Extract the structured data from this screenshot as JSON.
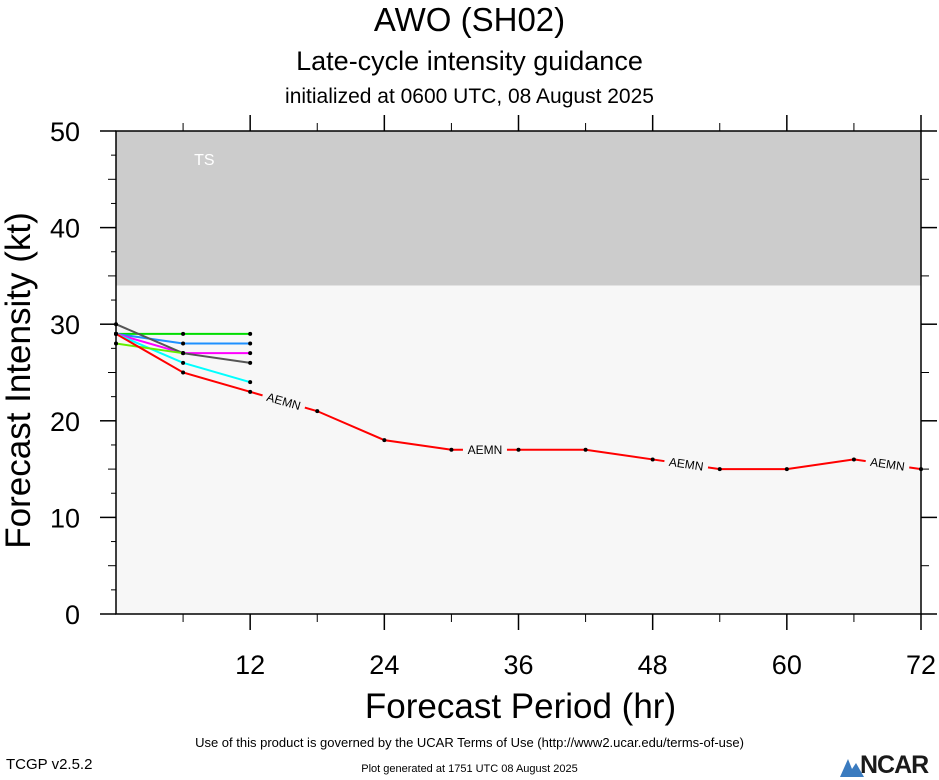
{
  "chart_data": {
    "type": "line",
    "title": "AWO (SH02)",
    "subtitle": "Late-cycle intensity guidance",
    "init_line": "initialized at 0600 UTC, 08 August 2025",
    "xlabel": "Forecast Period (hr)",
    "ylabel": "Forecast Intensity (kt)",
    "xlim": [
      0,
      72
    ],
    "ylim": [
      0,
      50
    ],
    "xticks": [
      12,
      24,
      36,
      48,
      60,
      72
    ],
    "yticks": [
      0,
      10,
      20,
      30,
      40,
      50
    ],
    "bands": [
      {
        "label": "TS",
        "ymin": 34,
        "ymax": 50,
        "color": "#cccccc"
      },
      {
        "label": "",
        "ymin": 0,
        "ymax": 34,
        "color": "#f7f7f7"
      }
    ],
    "series": [
      {
        "name": "AEMN",
        "color": "#ff0000",
        "labeled": true,
        "x": [
          0,
          6,
          12,
          18,
          24,
          30,
          36,
          42,
          48,
          54,
          60,
          66,
          72
        ],
        "y": [
          29,
          25,
          23,
          21,
          18,
          17,
          17,
          17,
          16,
          15,
          15,
          16,
          15
        ]
      },
      {
        "name": "",
        "color": "#00dd00",
        "x": [
          0,
          6,
          12
        ],
        "y": [
          29,
          29,
          29
        ]
      },
      {
        "name": "",
        "color": "#1e90ff",
        "x": [
          0,
          6,
          12
        ],
        "y": [
          29,
          28,
          28
        ]
      },
      {
        "name": "",
        "color": "#ff00ff",
        "x": [
          0,
          6,
          12
        ],
        "y": [
          29,
          27,
          27
        ]
      },
      {
        "name": "",
        "color": "#555555",
        "x": [
          0,
          6,
          12
        ],
        "y": [
          30,
          27,
          26
        ]
      },
      {
        "name": "",
        "color": "#00ffff",
        "x": [
          0,
          6,
          12
        ],
        "y": [
          29,
          26,
          24
        ]
      },
      {
        "name": "",
        "color": "#66ee00",
        "x": [
          0,
          6
        ],
        "y": [
          28,
          27
        ]
      }
    ]
  },
  "footer": {
    "terms": "Use of this product is governed by the UCAR Terms of Use (http://www2.ucar.edu/terms-of-use)",
    "generated": "Plot generated at 1751 UTC   08 August 2025",
    "version": "TCGP v2.5.2",
    "logo": "NCAR"
  }
}
